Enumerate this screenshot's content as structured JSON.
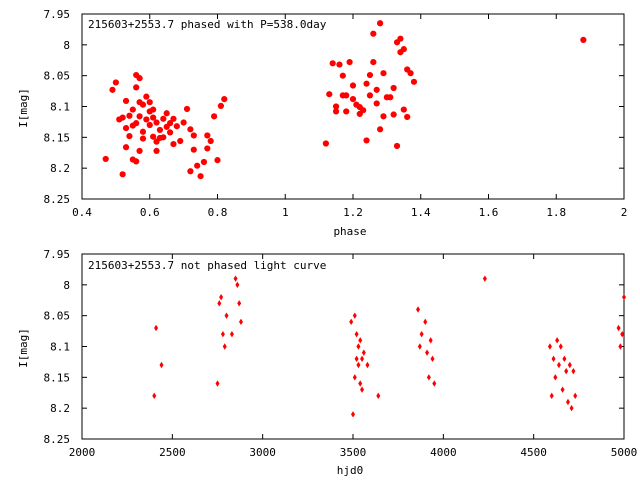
{
  "chart_data": [
    {
      "type": "scatter",
      "title": "215603+2553.7 phased with P=538.0day",
      "xlabel": "phase",
      "ylabel": "I[mag]",
      "xlim": [
        0.4,
        2
      ],
      "ylim": [
        7.95,
        8.25
      ],
      "y_inverted": true,
      "x_ticks": [
        "0.4",
        "0.6",
        "0.8",
        "1",
        "1.2",
        "1.4",
        "1.6",
        "1.8",
        "2"
      ],
      "y_ticks": [
        "7.95",
        "8",
        "8.05",
        "8.1",
        "8.15",
        "8.2",
        "8.25"
      ],
      "marker_color": "#ff0000",
      "x": [
        0.47,
        0.49,
        0.5,
        0.51,
        0.52,
        0.52,
        0.53,
        0.53,
        0.53,
        0.54,
        0.54,
        0.55,
        0.55,
        0.55,
        0.56,
        0.56,
        0.56,
        0.56,
        0.57,
        0.57,
        0.57,
        0.57,
        0.58,
        0.58,
        0.58,
        0.59,
        0.59,
        0.6,
        0.6,
        0.6,
        0.61,
        0.61,
        0.61,
        0.62,
        0.62,
        0.62,
        0.63,
        0.63,
        0.64,
        0.64,
        0.65,
        0.65,
        0.66,
        0.66,
        0.67,
        0.67,
        0.68,
        0.69,
        0.7,
        0.71,
        0.72,
        0.72,
        0.73,
        0.73,
        0.74,
        0.75,
        0.76,
        0.77,
        0.77,
        0.78,
        0.79,
        0.8,
        0.81,
        0.82,
        1.12,
        1.13,
        1.14,
        1.15,
        1.15,
        1.16,
        1.17,
        1.17,
        1.18,
        1.18,
        1.19,
        1.2,
        1.2,
        1.21,
        1.22,
        1.22,
        1.23,
        1.24,
        1.24,
        1.25,
        1.25,
        1.26,
        1.26,
        1.27,
        1.27,
        1.28,
        1.28,
        1.29,
        1.29,
        1.3,
        1.31,
        1.32,
        1.32,
        1.33,
        1.33,
        1.34,
        1.34,
        1.35,
        1.35,
        1.36,
        1.36,
        1.37,
        1.38,
        1.88
      ],
      "y": [
        8.185,
        8.073,
        8.061,
        8.121,
        8.21,
        8.118,
        8.091,
        8.166,
        8.135,
        8.148,
        8.115,
        8.105,
        8.186,
        8.131,
        8.049,
        8.069,
        8.189,
        8.127,
        8.054,
        8.093,
        8.172,
        8.116,
        8.152,
        8.097,
        8.141,
        8.084,
        8.121,
        8.108,
        8.13,
        8.093,
        8.149,
        8.118,
        8.105,
        8.172,
        8.157,
        8.126,
        8.138,
        8.151,
        8.12,
        8.15,
        8.133,
        8.111,
        8.142,
        8.127,
        8.161,
        8.12,
        8.132,
        8.156,
        8.126,
        8.104,
        8.205,
        8.137,
        8.17,
        8.147,
        8.196,
        8.213,
        8.19,
        8.168,
        8.147,
        8.156,
        8.116,
        8.187,
        8.099,
        8.088,
        8.16,
        8.08,
        8.03,
        8.1,
        8.108,
        8.032,
        8.082,
        8.05,
        8.108,
        8.082,
        8.028,
        8.088,
        8.066,
        8.097,
        8.101,
        8.112,
        8.106,
        8.155,
        8.063,
        8.049,
        8.082,
        7.982,
        8.028,
        8.095,
        8.073,
        7.965,
        8.137,
        8.046,
        8.116,
        8.085,
        8.085,
        8.113,
        8.07,
        7.996,
        8.164,
        7.99,
        8.012,
        8.007,
        8.105,
        8.04,
        8.117,
        8.046,
        8.06,
        7.992
      ],
      "marker": "filled-circle"
    },
    {
      "type": "scatter",
      "title": "215603+2553.7 not phased light curve",
      "xlabel": "hjd0",
      "ylabel": "I[mag]",
      "xlim": [
        2000,
        5000
      ],
      "ylim": [
        7.95,
        8.25
      ],
      "y_inverted": true,
      "x_ticks": [
        "2000",
        "2500",
        "3000",
        "3500",
        "4000",
        "4500",
        "5000"
      ],
      "y_ticks": [
        "7.95",
        "8",
        "8.05",
        "8.1",
        "8.15",
        "8.2",
        "8.25"
      ],
      "marker_color": "#ff0000",
      "x": [
        2400,
        2410,
        2440,
        2750,
        2760,
        2770,
        2780,
        2790,
        2800,
        2830,
        2850,
        2860,
        2870,
        2880,
        3490,
        3500,
        3510,
        3510,
        3520,
        3520,
        3530,
        3530,
        3540,
        3540,
        3550,
        3550,
        3560,
        3580,
        3640,
        3860,
        3870,
        3880,
        3900,
        3910,
        3920,
        3930,
        3940,
        3950,
        4230,
        4590,
        4600,
        4610,
        4620,
        4630,
        4640,
        4650,
        4660,
        4670,
        4680,
        4690,
        4700,
        4710,
        4720,
        4730,
        4970,
        4980,
        4990,
        5000
      ],
      "y": [
        8.18,
        8.07,
        8.13,
        8.16,
        8.03,
        8.02,
        8.08,
        8.1,
        8.05,
        8.08,
        7.99,
        8.0,
        8.03,
        8.06,
        8.06,
        8.21,
        8.05,
        8.15,
        8.08,
        8.12,
        8.1,
        8.13,
        8.09,
        8.16,
        8.12,
        8.17,
        8.11,
        8.13,
        8.18,
        8.04,
        8.1,
        8.08,
        8.06,
        8.11,
        8.15,
        8.09,
        8.12,
        8.16,
        7.99,
        8.1,
        8.18,
        8.12,
        8.15,
        8.09,
        8.13,
        8.1,
        8.17,
        8.12,
        8.14,
        8.19,
        8.13,
        8.2,
        8.14,
        8.18,
        8.07,
        8.1,
        8.08,
        8.02
      ],
      "marker": "diamond"
    }
  ]
}
